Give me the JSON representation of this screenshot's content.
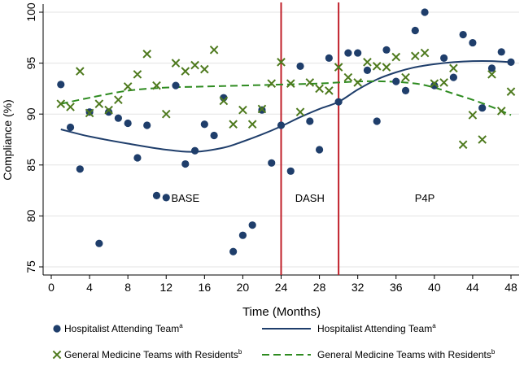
{
  "chart_data": {
    "type": "scatter",
    "xlabel": "Time (Months)",
    "ylabel": "Compliance (%)",
    "xlim": [
      0,
      48
    ],
    "ylim": [
      75,
      100
    ],
    "xticks": [
      0,
      4,
      8,
      12,
      16,
      20,
      24,
      28,
      32,
      36,
      40,
      44,
      48
    ],
    "yticks": [
      75,
      80,
      85,
      90,
      95,
      100
    ],
    "grid": "horizontal",
    "phase_lines": [
      24,
      30
    ],
    "phase_line_color": "#c0202a",
    "phase_labels": [
      {
        "text": "BASE",
        "x": 14,
        "y": 81.4
      },
      {
        "text": "DASH",
        "x": 27,
        "y": 81.4
      },
      {
        "text": "P4P",
        "x": 39,
        "y": 81.4
      }
    ],
    "series": [
      {
        "name": "Hospitalist Attending Team",
        "superscript": "a",
        "kind": "dots",
        "color": "#1f3e6b",
        "points": [
          [
            1,
            92.9
          ],
          [
            2,
            88.7
          ],
          [
            3,
            84.6
          ],
          [
            4,
            90.2
          ],
          [
            5,
            77.3
          ],
          [
            6,
            90.2
          ],
          [
            7,
            89.6
          ],
          [
            8,
            89.1
          ],
          [
            9,
            85.7
          ],
          [
            10,
            88.9
          ],
          [
            11,
            82.0
          ],
          [
            12,
            81.8
          ],
          [
            13,
            92.8
          ],
          [
            14,
            85.1
          ],
          [
            15,
            86.4
          ],
          [
            16,
            89.0
          ],
          [
            17,
            87.9
          ],
          [
            18,
            91.6
          ],
          [
            19,
            76.5
          ],
          [
            20,
            78.1
          ],
          [
            21,
            79.1
          ],
          [
            22,
            90.4
          ],
          [
            23,
            85.2
          ],
          [
            24,
            88.9
          ],
          [
            25,
            84.4
          ],
          [
            26,
            94.7
          ],
          [
            27,
            89.3
          ],
          [
            28,
            86.5
          ],
          [
            29,
            95.5
          ],
          [
            30,
            91.2
          ],
          [
            31,
            96.0
          ],
          [
            32,
            96.0
          ],
          [
            33,
            94.3
          ],
          [
            34,
            89.3
          ],
          [
            35,
            96.3
          ],
          [
            36,
            93.2
          ],
          [
            37,
            92.3
          ],
          [
            38,
            98.2
          ],
          [
            39,
            100.0
          ],
          [
            40,
            92.8
          ],
          [
            41,
            95.5
          ],
          [
            42,
            93.6
          ],
          [
            43,
            97.8
          ],
          [
            44,
            97.0
          ],
          [
            45,
            90.6
          ],
          [
            46,
            94.5
          ],
          [
            47,
            96.1
          ],
          [
            48,
            95.1
          ]
        ]
      },
      {
        "name": "Hospitalist Attending Team",
        "superscript": "a",
        "kind": "solid",
        "color": "#1f3e6b",
        "points": [
          [
            1,
            88.5
          ],
          [
            4,
            87.8
          ],
          [
            8,
            87.1
          ],
          [
            12,
            86.5
          ],
          [
            15,
            86.3
          ],
          [
            18,
            86.7
          ],
          [
            20,
            87.3
          ],
          [
            22,
            88.0
          ],
          [
            24,
            88.8
          ],
          [
            26,
            89.7
          ],
          [
            28,
            90.5
          ],
          [
            30,
            91.2
          ],
          [
            32,
            92.4
          ],
          [
            34,
            93.4
          ],
          [
            36,
            94.1
          ],
          [
            38,
            94.6
          ],
          [
            40,
            94.9
          ],
          [
            42,
            95.1
          ],
          [
            44,
            95.2
          ],
          [
            46,
            95.2
          ],
          [
            48,
            95.1
          ]
        ]
      },
      {
        "name": "General Medicine Teams with Residents",
        "superscript": "b",
        "kind": "crosses",
        "color": "#4e7a1e",
        "points": [
          [
            1,
            91.0
          ],
          [
            2,
            90.7
          ],
          [
            3,
            94.2
          ],
          [
            4,
            90.1
          ],
          [
            5,
            91.0
          ],
          [
            6,
            90.4
          ],
          [
            7,
            91.4
          ],
          [
            8,
            92.7
          ],
          [
            9,
            93.9
          ],
          [
            10,
            95.9
          ],
          [
            11,
            92.8
          ],
          [
            12,
            90.0
          ],
          [
            13,
            95.0
          ],
          [
            14,
            94.2
          ],
          [
            15,
            94.8
          ],
          [
            16,
            94.4
          ],
          [
            17,
            96.3
          ],
          [
            18,
            91.3
          ],
          [
            19,
            89.0
          ],
          [
            20,
            90.4
          ],
          [
            21,
            89.0
          ],
          [
            22,
            90.5
          ],
          [
            23,
            93.0
          ],
          [
            24,
            95.1
          ],
          [
            25,
            93.0
          ],
          [
            26,
            90.2
          ],
          [
            27,
            93.1
          ],
          [
            28,
            92.5
          ],
          [
            29,
            92.3
          ],
          [
            30,
            94.6
          ],
          [
            31,
            93.6
          ],
          [
            32,
            93.1
          ],
          [
            33,
            95.1
          ],
          [
            34,
            94.7
          ],
          [
            35,
            94.6
          ],
          [
            36,
            95.6
          ],
          [
            37,
            93.6
          ],
          [
            38,
            95.7
          ],
          [
            39,
            96.0
          ],
          [
            40,
            93.0
          ],
          [
            41,
            93.1
          ],
          [
            42,
            94.5
          ],
          [
            43,
            87.0
          ],
          [
            44,
            89.9
          ],
          [
            45,
            87.5
          ],
          [
            46,
            93.9
          ],
          [
            47,
            90.3
          ],
          [
            48,
            92.2
          ]
        ]
      },
      {
        "name": "General Medicine Teams with Residents",
        "superscript": "b",
        "kind": "dashed",
        "color": "#2e8b20",
        "points": [
          [
            1,
            91.0
          ],
          [
            4,
            91.6
          ],
          [
            8,
            92.3
          ],
          [
            12,
            92.6
          ],
          [
            16,
            92.7
          ],
          [
            20,
            92.8
          ],
          [
            24,
            92.9
          ],
          [
            28,
            93.0
          ],
          [
            32,
            93.2
          ],
          [
            35,
            93.2
          ],
          [
            38,
            93.0
          ],
          [
            40,
            92.6
          ],
          [
            42,
            92.0
          ],
          [
            44,
            91.4
          ],
          [
            46,
            90.7
          ],
          [
            48,
            89.9
          ]
        ]
      }
    ]
  }
}
